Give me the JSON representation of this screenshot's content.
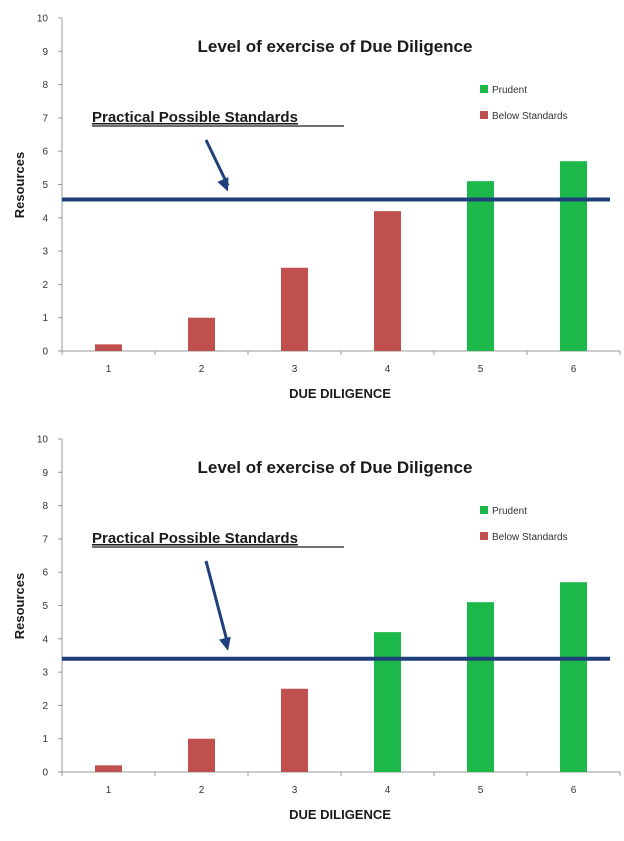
{
  "chart_data": [
    {
      "type": "bar",
      "title": "Level of exercise of Due Diligence",
      "xlabel": "DUE DILIGENCE",
      "ylabel": "Resources",
      "ylim": [
        0,
        10
      ],
      "yticks": [
        "0",
        "1",
        "2",
        "3",
        "4",
        "5",
        "6",
        "7",
        "8",
        "9",
        "10"
      ],
      "categories": [
        "1",
        "2",
        "3",
        "4",
        "5",
        "6"
      ],
      "values": [
        0.2,
        1.0,
        2.5,
        4.2,
        5.1,
        5.7
      ],
      "bar_classes": [
        "Below Standards",
        "Below Standards",
        "Below Standards",
        "Below Standards",
        "Prudent",
        "Prudent"
      ],
      "legend": [
        {
          "label": "Prudent",
          "color": "#1cb84a"
        },
        {
          "label": "Below Standards",
          "color": "#c0504d"
        }
      ],
      "threshold": {
        "value": 4.55,
        "label": "Practical Possible Standards",
        "color": "#1f3f7a"
      },
      "grid": false,
      "legend_position": "top-right"
    },
    {
      "type": "bar",
      "title": "Level of exercise of Due Diligence",
      "xlabel": "DUE DILIGENCE",
      "ylabel": "Resources",
      "ylim": [
        0,
        10
      ],
      "yticks": [
        "0",
        "1",
        "2",
        "3",
        "4",
        "5",
        "6",
        "7",
        "8",
        "9",
        "10"
      ],
      "categories": [
        "1",
        "2",
        "3",
        "4",
        "5",
        "6"
      ],
      "values": [
        0.2,
        1.0,
        2.5,
        4.2,
        5.1,
        5.7
      ],
      "bar_classes": [
        "Below Standards",
        "Below Standards",
        "Below Standards",
        "Prudent",
        "Prudent",
        "Prudent"
      ],
      "legend": [
        {
          "label": "Prudent",
          "color": "#1cb84a"
        },
        {
          "label": "Below Standards",
          "color": "#c0504d"
        }
      ],
      "threshold": {
        "value": 3.4,
        "label": "Practical Possible Standards",
        "color": "#1f3f7a"
      },
      "grid": false,
      "legend_position": "top-right"
    }
  ]
}
